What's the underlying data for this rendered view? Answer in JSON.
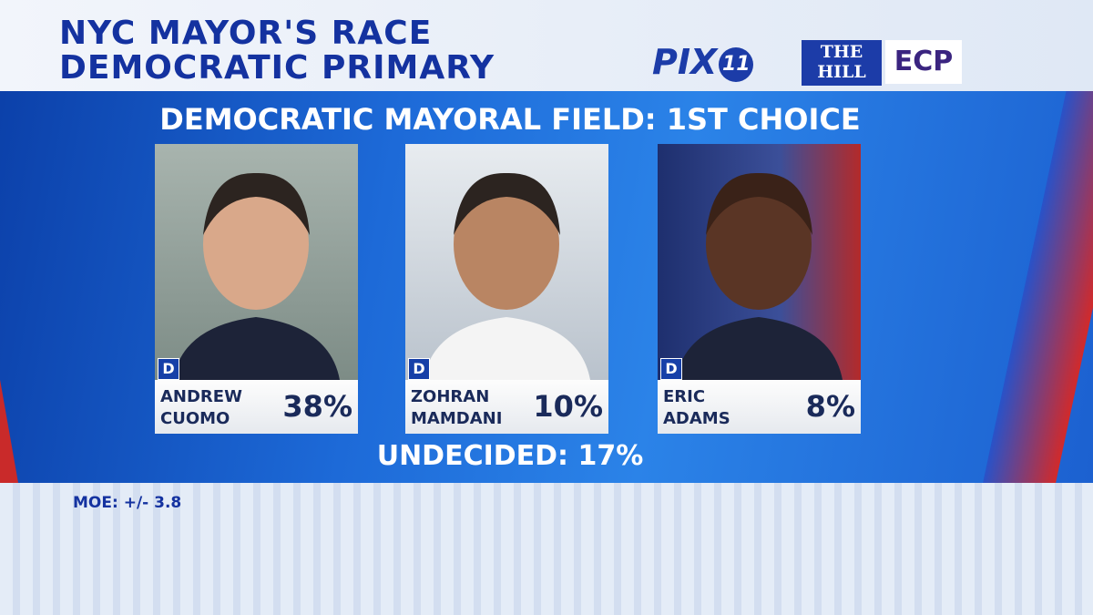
{
  "header": {
    "title_lines": [
      "NYC MAYOR'S RACE",
      "DEMOCRATIC PRIMARY"
    ],
    "logos": {
      "pix": "PIX",
      "pix_number": "11",
      "hill": [
        "THE",
        "HILL"
      ],
      "ecp": "ECP"
    }
  },
  "subtitle": "DEMOCRATIC MAYORAL FIELD: 1ST CHOICE",
  "candidates": [
    {
      "party": "D",
      "first_name": "ANDREW",
      "last_name": "CUOMO",
      "percent": "38%"
    },
    {
      "party": "D",
      "first_name": "ZOHRAN",
      "last_name": "MAMDANI",
      "percent": "10%"
    },
    {
      "party": "D",
      "first_name": "ERIC",
      "last_name": "ADAMS",
      "percent": "8%"
    }
  ],
  "undecided": "UNDECIDED: 17%",
  "footnote": "MOE: +/- 3.8"
}
